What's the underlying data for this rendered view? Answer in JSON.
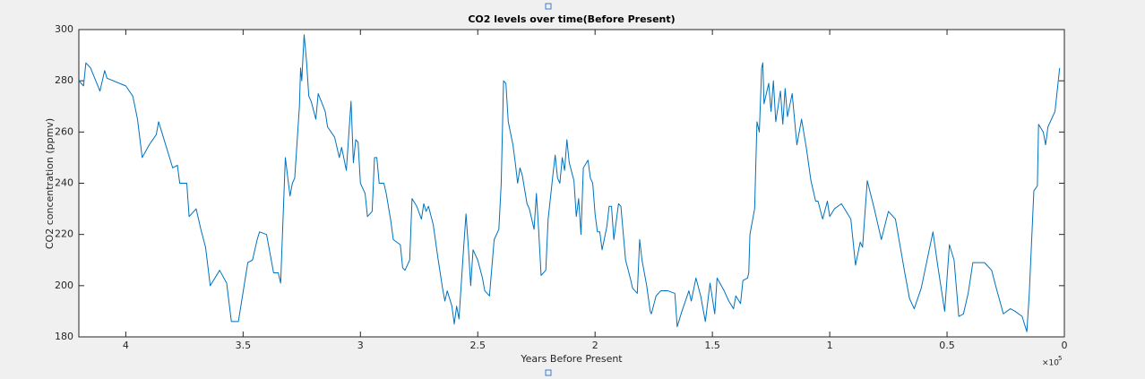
{
  "chart_data": {
    "type": "line",
    "title": "CO2 levels over time(Before Present)",
    "x_label": "Years Before Present",
    "y_label": "CO2 concentration (ppmv)",
    "x_multiplier": "×10",
    "x_multiplier_exponent": "5",
    "xlim": [
      0,
      420000
    ],
    "x_reverse": true,
    "xticks": [
      {
        "value": 0,
        "label": "0"
      },
      {
        "value": 50000,
        "label": "0.5"
      },
      {
        "value": 100000,
        "label": "1"
      },
      {
        "value": 150000,
        "label": "1.5"
      },
      {
        "value": 200000,
        "label": "2"
      },
      {
        "value": 250000,
        "label": "2.5"
      },
      {
        "value": 300000,
        "label": "3"
      },
      {
        "value": 350000,
        "label": "3.5"
      },
      {
        "value": 400000,
        "label": "4"
      }
    ],
    "ylim": [
      180,
      300
    ],
    "yticks": [
      180,
      200,
      220,
      240,
      260,
      280,
      300
    ],
    "grid": false,
    "x": [
      420000,
      418000,
      417000,
      415000,
      411000,
      409000,
      408000,
      400000,
      397000,
      395000,
      393000,
      390000,
      387000,
      386000,
      384000,
      380000,
      378000,
      377000,
      374000,
      373000,
      370000,
      368000,
      366000,
      364000,
      360000,
      357000,
      355000,
      352000,
      348000,
      346000,
      344000,
      343000,
      340000,
      338000,
      337000,
      335000,
      334000,
      332000,
      330000,
      329000,
      328000,
      326000,
      325500,
      325000,
      324000,
      323000,
      322000,
      321000,
      319000,
      318000,
      315000,
      314000,
      311000,
      309000,
      308000,
      306000,
      304000,
      303000,
      302000,
      301000,
      300000,
      298000,
      297000,
      295000,
      294000,
      293000,
      292000,
      290000,
      289000,
      287000,
      286000,
      283000,
      282000,
      281000,
      279000,
      278000,
      276000,
      274000,
      273000,
      272000,
      271000,
      269000,
      267000,
      265000,
      264000,
      263000,
      261000,
      260000,
      259000,
      258000,
      256000,
      255000,
      254000,
      253000,
      252000,
      250000,
      248000,
      247000,
      246000,
      245000,
      244000,
      243000,
      241000,
      240000,
      239000,
      238000,
      237000,
      235000,
      234000,
      233000,
      232000,
      231000,
      229000,
      228000,
      226000,
      225000,
      224000,
      223000,
      221000,
      220000,
      218000,
      217000,
      216000,
      215000,
      214000,
      213000,
      212000,
      211000,
      209000,
      208000,
      207000,
      206000,
      205000,
      203000,
      202000,
      201000,
      200000,
      199000,
      198000,
      197000,
      195000,
      194000,
      193000,
      192000,
      190000,
      189000,
      187000,
      185000,
      184000,
      182000,
      181000,
      180000,
      178000,
      176500,
      176000,
      174000,
      172000,
      169000,
      166000,
      165000,
      163000,
      160000,
      159000,
      157000,
      155000,
      153000,
      151000,
      149000,
      148000,
      145000,
      143000,
      141000,
      140000,
      138000,
      137000,
      135000,
      134500,
      134000,
      132000,
      131000,
      130000,
      129000,
      128500,
      128000,
      126000,
      125000,
      124000,
      123000,
      121000,
      120000,
      119000,
      118000,
      116000,
      114000,
      112000,
      110000,
      108000,
      106000,
      105000,
      103000,
      101000,
      100000,
      98000,
      95000,
      91000,
      89000,
      87000,
      86000,
      84000,
      81000,
      78000,
      75000,
      72000,
      68000,
      66000,
      64000,
      61000,
      56000,
      54000,
      51000,
      49000,
      47000,
      45000,
      43000,
      41000,
      39000,
      34000,
      31000,
      29000,
      26000,
      23000,
      21000,
      18000,
      16000,
      15000,
      13000,
      11500,
      11000,
      9000,
      8000,
      7000,
      4000,
      2000
    ],
    "series": [
      {
        "name": "CO2",
        "color": "#0072bd",
        "values": [
          280,
          278,
          287,
          285,
          276,
          284,
          281,
          278,
          274,
          265,
          250,
          255,
          259,
          264,
          258,
          246,
          247,
          240,
          240,
          227,
          230,
          222,
          215,
          200,
          206,
          201,
          186,
          186,
          209,
          210,
          218,
          221,
          220,
          210,
          205,
          205,
          201,
          250,
          235,
          240,
          242,
          270,
          285,
          280,
          298,
          288,
          274,
          272,
          265,
          275,
          268,
          262,
          258,
          250,
          254,
          245,
          272,
          248,
          257,
          256,
          240,
          236,
          227,
          229,
          250,
          250,
          240,
          240,
          236,
          225,
          218,
          216,
          207,
          206,
          210,
          234,
          231,
          226,
          232,
          229,
          231,
          224,
          211,
          199,
          194,
          198,
          192,
          185,
          192,
          187,
          215,
          228,
          215,
          200,
          214,
          210,
          203,
          198,
          197,
          196,
          207,
          218,
          222,
          240,
          280,
          279,
          264,
          255,
          248,
          240,
          246,
          243,
          232,
          230,
          222,
          236,
          221,
          204,
          206,
          226,
          243,
          251,
          242,
          240,
          250,
          245,
          257,
          248,
          241,
          227,
          234,
          220,
          246,
          249,
          242,
          240,
          228,
          221,
          221,
          214,
          223,
          231,
          231,
          218,
          232,
          231,
          210,
          203,
          199,
          197,
          218,
          210,
          200,
          190,
          189,
          196,
          198,
          198,
          197,
          184,
          190,
          198,
          194,
          203,
          196,
          186,
          201,
          189,
          203,
          198,
          194,
          191,
          196,
          193,
          202,
          203,
          205,
          220,
          230,
          264,
          260,
          285,
          287,
          271,
          279,
          268,
          280,
          264,
          276,
          263,
          277,
          266,
          275,
          255,
          265,
          254,
          241,
          233,
          233,
          226,
          233,
          227,
          230,
          232,
          226,
          208,
          217,
          215,
          241,
          230,
          218,
          229,
          226,
          205,
          195,
          191,
          199,
          221,
          208,
          190,
          216,
          210,
          188,
          189,
          197,
          209,
          209,
          206,
          199,
          189,
          191,
          190,
          188,
          182,
          196,
          237,
          239,
          263,
          260,
          255,
          262,
          268,
          285
        ]
      }
    ]
  }
}
